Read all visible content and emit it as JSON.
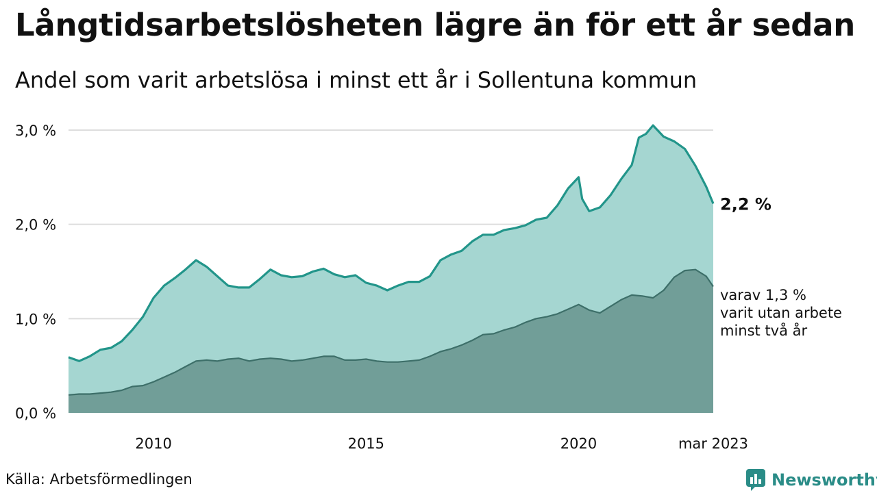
{
  "title": "Långtidsarbetslösheten lägre än för ett år sedan",
  "subtitle": "Andel som varit arbetslösa i minst ett år i Sollentuna kommun",
  "source": "Källa: Arbetsförmedlingen",
  "brand": {
    "name": "Newsworthy",
    "icon": "newsworthy-logo-icon"
  },
  "colors": {
    "total_line": "#22958a",
    "total_area": "#a5d6d1",
    "twoyear_line": "#3d6f69",
    "twoyear_area": "#719e98",
    "grid": "#dddddd",
    "brand": "#2a8c87"
  },
  "chart_data": {
    "type": "area",
    "x_label_latest": "mar 2023",
    "x_tick_labels": [
      "2010",
      "2015",
      "2020",
      "mar 2023"
    ],
    "x_range": [
      "2008-01",
      "2023-03"
    ],
    "y_ticks": [
      "0,0 %",
      "1,0 %",
      "2,0 %",
      "3,0 %"
    ],
    "ylim": [
      0,
      3.0
    ],
    "grid": "horizontal",
    "annotations": {
      "total_end": "2,2 %",
      "twoyear_end": [
        "varav 1,3 %",
        "varit utan arbete",
        "minst två år"
      ]
    },
    "series": [
      {
        "key": "total",
        "points": [
          [
            "2008-01",
            0.59
          ],
          [
            "2008-04",
            0.55
          ],
          [
            "2008-07",
            0.6
          ],
          [
            "2008-10",
            0.67
          ],
          [
            "2009-01",
            0.69
          ],
          [
            "2009-04",
            0.76
          ],
          [
            "2009-07",
            0.88
          ],
          [
            "2009-10",
            1.02
          ],
          [
            "2010-01",
            1.22
          ],
          [
            "2010-04",
            1.35
          ],
          [
            "2010-07",
            1.43
          ],
          [
            "2010-10",
            1.52
          ],
          [
            "2011-01",
            1.62
          ],
          [
            "2011-04",
            1.55
          ],
          [
            "2011-07",
            1.45
          ],
          [
            "2011-10",
            1.35
          ],
          [
            "2012-01",
            1.33
          ],
          [
            "2012-04",
            1.33
          ],
          [
            "2012-07",
            1.42
          ],
          [
            "2012-10",
            1.52
          ],
          [
            "2013-01",
            1.46
          ],
          [
            "2013-04",
            1.44
          ],
          [
            "2013-07",
            1.45
          ],
          [
            "2013-10",
            1.5
          ],
          [
            "2014-01",
            1.53
          ],
          [
            "2014-04",
            1.47
          ],
          [
            "2014-07",
            1.44
          ],
          [
            "2014-10",
            1.46
          ],
          [
            "2015-01",
            1.38
          ],
          [
            "2015-04",
            1.35
          ],
          [
            "2015-07",
            1.3
          ],
          [
            "2015-10",
            1.35
          ],
          [
            "2016-01",
            1.39
          ],
          [
            "2016-04",
            1.39
          ],
          [
            "2016-07",
            1.45
          ],
          [
            "2016-10",
            1.62
          ],
          [
            "2017-01",
            1.68
          ],
          [
            "2017-04",
            1.72
          ],
          [
            "2017-07",
            1.82
          ],
          [
            "2017-10",
            1.89
          ],
          [
            "2018-01",
            1.89
          ],
          [
            "2018-04",
            1.94
          ],
          [
            "2018-07",
            1.96
          ],
          [
            "2018-10",
            1.99
          ],
          [
            "2019-01",
            2.05
          ],
          [
            "2019-04",
            2.07
          ],
          [
            "2019-07",
            2.2
          ],
          [
            "2019-10",
            2.38
          ],
          [
            "2020-01",
            2.5
          ],
          [
            "2020-02",
            2.27
          ],
          [
            "2020-04",
            2.14
          ],
          [
            "2020-07",
            2.18
          ],
          [
            "2020-10",
            2.31
          ],
          [
            "2021-01",
            2.48
          ],
          [
            "2021-04",
            2.63
          ],
          [
            "2021-06",
            2.92
          ],
          [
            "2021-08",
            2.96
          ],
          [
            "2021-10",
            3.05
          ],
          [
            "2022-01",
            2.93
          ],
          [
            "2022-04",
            2.88
          ],
          [
            "2022-07",
            2.8
          ],
          [
            "2022-10",
            2.62
          ],
          [
            "2023-01",
            2.4
          ],
          [
            "2023-03",
            2.22
          ]
        ]
      },
      {
        "key": "two_years",
        "points": [
          [
            "2008-01",
            0.19
          ],
          [
            "2008-04",
            0.2
          ],
          [
            "2008-07",
            0.2
          ],
          [
            "2008-10",
            0.21
          ],
          [
            "2009-01",
            0.22
          ],
          [
            "2009-04",
            0.24
          ],
          [
            "2009-07",
            0.28
          ],
          [
            "2009-10",
            0.29
          ],
          [
            "2010-01",
            0.33
          ],
          [
            "2010-04",
            0.38
          ],
          [
            "2010-07",
            0.43
          ],
          [
            "2010-10",
            0.49
          ],
          [
            "2011-01",
            0.55
          ],
          [
            "2011-04",
            0.56
          ],
          [
            "2011-07",
            0.55
          ],
          [
            "2011-10",
            0.57
          ],
          [
            "2012-01",
            0.58
          ],
          [
            "2012-04",
            0.55
          ],
          [
            "2012-07",
            0.57
          ],
          [
            "2012-10",
            0.58
          ],
          [
            "2013-01",
            0.57
          ],
          [
            "2013-04",
            0.55
          ],
          [
            "2013-07",
            0.56
          ],
          [
            "2013-10",
            0.58
          ],
          [
            "2014-01",
            0.6
          ],
          [
            "2014-04",
            0.6
          ],
          [
            "2014-07",
            0.56
          ],
          [
            "2014-10",
            0.56
          ],
          [
            "2015-01",
            0.57
          ],
          [
            "2015-04",
            0.55
          ],
          [
            "2015-07",
            0.54
          ],
          [
            "2015-10",
            0.54
          ],
          [
            "2016-01",
            0.55
          ],
          [
            "2016-04",
            0.56
          ],
          [
            "2016-07",
            0.6
          ],
          [
            "2016-10",
            0.65
          ],
          [
            "2017-01",
            0.68
          ],
          [
            "2017-04",
            0.72
          ],
          [
            "2017-07",
            0.77
          ],
          [
            "2017-10",
            0.83
          ],
          [
            "2018-01",
            0.84
          ],
          [
            "2018-04",
            0.88
          ],
          [
            "2018-07",
            0.91
          ],
          [
            "2018-10",
            0.96
          ],
          [
            "2019-01",
            1.0
          ],
          [
            "2019-04",
            1.02
          ],
          [
            "2019-07",
            1.05
          ],
          [
            "2019-10",
            1.1
          ],
          [
            "2020-01",
            1.15
          ],
          [
            "2020-04",
            1.09
          ],
          [
            "2020-07",
            1.06
          ],
          [
            "2020-10",
            1.13
          ],
          [
            "2021-01",
            1.2
          ],
          [
            "2021-04",
            1.25
          ],
          [
            "2021-07",
            1.24
          ],
          [
            "2021-10",
            1.22
          ],
          [
            "2022-01",
            1.3
          ],
          [
            "2022-04",
            1.44
          ],
          [
            "2022-07",
            1.51
          ],
          [
            "2022-10",
            1.52
          ],
          [
            "2023-01",
            1.45
          ],
          [
            "2023-03",
            1.34
          ]
        ]
      }
    ]
  }
}
